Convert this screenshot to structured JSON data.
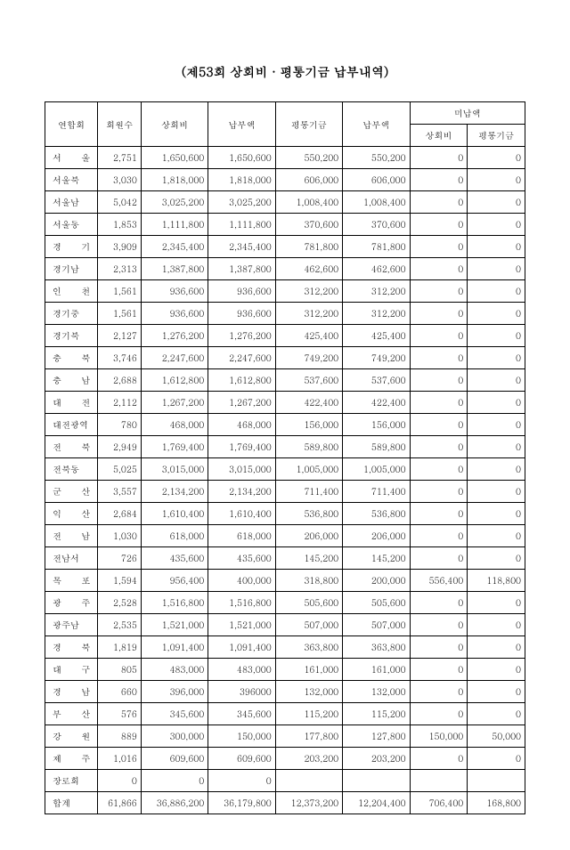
{
  "title": "(제53회 상회비 · 평통기금 납부내역)",
  "columns": {
    "name": "연합회",
    "members": "회원수",
    "fee": "상회비",
    "paid1": "납부액",
    "fund": "평통기금",
    "paid2": "납부액",
    "unpaid_group": "미납액",
    "unpaid_fee": "상회비",
    "unpaid_fund": "평통기금"
  },
  "rows": [
    {
      "name": "서 울",
      "members": "2,751",
      "fee": "1,650,600",
      "paid1": "1,650,600",
      "fund": "550,200",
      "paid2": "550,200",
      "u1": "0",
      "u2": "0"
    },
    {
      "name": "서울북",
      "members": "3,030",
      "fee": "1,818,000",
      "paid1": "1,818,000",
      "fund": "606,000",
      "paid2": "606,000",
      "u1": "0",
      "u2": "0"
    },
    {
      "name": "서울남",
      "members": "5,042",
      "fee": "3,025,200",
      "paid1": "3,025,200",
      "fund": "1,008,400",
      "paid2": "1,008,400",
      "u1": "0",
      "u2": "0"
    },
    {
      "name": "서울동",
      "members": "1,853",
      "fee": "1,111,800",
      "paid1": "1,111,800",
      "fund": "370,600",
      "paid2": "370,600",
      "u1": "0",
      "u2": "0"
    },
    {
      "name": "경 기",
      "members": "3,909",
      "fee": "2,345,400",
      "paid1": "2,345,400",
      "fund": "781,800",
      "paid2": "781,800",
      "u1": "0",
      "u2": "0"
    },
    {
      "name": "경기남",
      "members": "2,313",
      "fee": "1,387,800",
      "paid1": "1,387,800",
      "fund": "462,600",
      "paid2": "462,600",
      "u1": "0",
      "u2": "0"
    },
    {
      "name": "인 천",
      "members": "1,561",
      "fee": "936,600",
      "paid1": "936,600",
      "fund": "312,200",
      "paid2": "312,200",
      "u1": "0",
      "u2": "0"
    },
    {
      "name": "경기중",
      "members": "1,561",
      "fee": "936,600",
      "paid1": "936,600",
      "fund": "312,200",
      "paid2": "312,200",
      "u1": "0",
      "u2": "0"
    },
    {
      "name": "경기북",
      "members": "2,127",
      "fee": "1,276,200",
      "paid1": "1,276,200",
      "fund": "425,400",
      "paid2": "425,400",
      "u1": "0",
      "u2": "0"
    },
    {
      "name": "충 북",
      "members": "3,746",
      "fee": "2,247,600",
      "paid1": "2,247,600",
      "fund": "749,200",
      "paid2": "749,200",
      "u1": "0",
      "u2": "0"
    },
    {
      "name": "충 남",
      "members": "2,688",
      "fee": "1,612,800",
      "paid1": "1,612,800",
      "fund": "537,600",
      "paid2": "537,600",
      "u1": "0",
      "u2": "0"
    },
    {
      "name": "대 전",
      "members": "2,112",
      "fee": "1,267,200",
      "paid1": "1,267,200",
      "fund": "422,400",
      "paid2": "422,400",
      "u1": "0",
      "u2": "0"
    },
    {
      "name": "대전광역",
      "members": "780",
      "fee": "468,000",
      "paid1": "468,000",
      "fund": "156,000",
      "paid2": "156,000",
      "u1": "0",
      "u2": "0"
    },
    {
      "name": "전 북",
      "members": "2,949",
      "fee": "1,769,400",
      "paid1": "1,769,400",
      "fund": "589,800",
      "paid2": "589,800",
      "u1": "0",
      "u2": "0"
    },
    {
      "name": "전북동",
      "members": "5,025",
      "fee": "3,015,000",
      "paid1": "3,015,000",
      "fund": "1,005,000",
      "paid2": "1,005,000",
      "u1": "0",
      "u2": "0"
    },
    {
      "name": "군 산",
      "members": "3,557",
      "fee": "2,134,200",
      "paid1": "2,134,200",
      "fund": "711,400",
      "paid2": "711,400",
      "u1": "0",
      "u2": "0"
    },
    {
      "name": "익 산",
      "members": "2,684",
      "fee": "1,610,400",
      "paid1": "1,610,400",
      "fund": "536,800",
      "paid2": "536,800",
      "u1": "0",
      "u2": "0"
    },
    {
      "name": "전 남",
      "members": "1,030",
      "fee": "618,000",
      "paid1": "618,000",
      "fund": "206,000",
      "paid2": "206,000",
      "u1": "0",
      "u2": "0"
    },
    {
      "name": "전남서",
      "members": "726",
      "fee": "435,600",
      "paid1": "435,600",
      "fund": "145,200",
      "paid2": "145,200",
      "u1": "0",
      "u2": "0"
    },
    {
      "name": "목 포",
      "members": "1,594",
      "fee": "956,400",
      "paid1": "400,000",
      "fund": "318,800",
      "paid2": "200,000",
      "u1": "556,400",
      "u2": "118,800"
    },
    {
      "name": "광 주",
      "members": "2,528",
      "fee": "1,516,800",
      "paid1": "1,516,800",
      "fund": "505,600",
      "paid2": "505,600",
      "u1": "0",
      "u2": "0"
    },
    {
      "name": "광주남",
      "members": "2,535",
      "fee": "1,521,000",
      "paid1": "1,521,000",
      "fund": "507,000",
      "paid2": "507,000",
      "u1": "0",
      "u2": "0"
    },
    {
      "name": "경 북",
      "members": "1,819",
      "fee": "1,091,400",
      "paid1": "1,091,400",
      "fund": "363,800",
      "paid2": "363,800",
      "u1": "0",
      "u2": "0"
    },
    {
      "name": "대 구",
      "members": "805",
      "fee": "483,000",
      "paid1": "483,000",
      "fund": "161,000",
      "paid2": "161,000",
      "u1": "0",
      "u2": "0"
    },
    {
      "name": "경 남",
      "members": "660",
      "fee": "396,000",
      "paid1": "396000",
      "fund": "132,000",
      "paid2": "132,000",
      "u1": "0",
      "u2": "0"
    },
    {
      "name": "부 산",
      "members": "576",
      "fee": "345,600",
      "paid1": "345,600",
      "fund": "115,200",
      "paid2": "115,200",
      "u1": "0",
      "u2": "0"
    },
    {
      "name": "강 원",
      "members": "889",
      "fee": "300,000",
      "paid1": "150,000",
      "fund": "177,800",
      "paid2": "127,800",
      "u1": "150,000",
      "u2": "50,000"
    },
    {
      "name": "제 주",
      "members": "1,016",
      "fee": "609,600",
      "paid1": "609,600",
      "fund": "203,200",
      "paid2": "203,200",
      "u1": "0",
      "u2": "0"
    },
    {
      "name": "장로회",
      "members": "0",
      "fee": "0",
      "paid1": "0",
      "fund": "",
      "paid2": "",
      "u1": "",
      "u2": ""
    },
    {
      "name": "합계",
      "members": "61,866",
      "fee": "36,886,200",
      "paid1": "36,179,800",
      "fund": "12,373,200",
      "paid2": "12,204,400",
      "u1": "706,400",
      "u2": "168,800"
    }
  ],
  "style": {
    "background_color": "#ffffff",
    "border_color": "#000000",
    "text_color": "#000000",
    "title_fontsize": 14,
    "cell_fontsize": 10
  }
}
